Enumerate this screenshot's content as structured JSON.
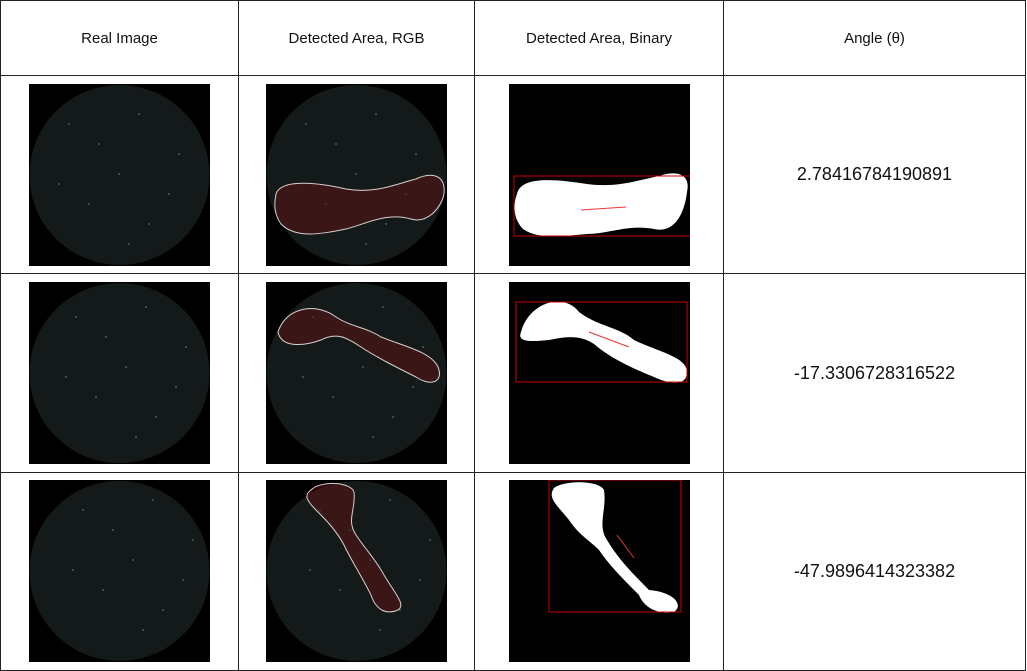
{
  "table": {
    "header": [
      "Real Image",
      "Detected Area, RGB",
      "Detected Area, Binary",
      "Angle (θ)"
    ],
    "rows": [
      {
        "angle": "2.78416784190891"
      },
      {
        "angle": "-17.3306728316522"
      },
      {
        "angle": "-47.9896414323382"
      }
    ]
  }
}
